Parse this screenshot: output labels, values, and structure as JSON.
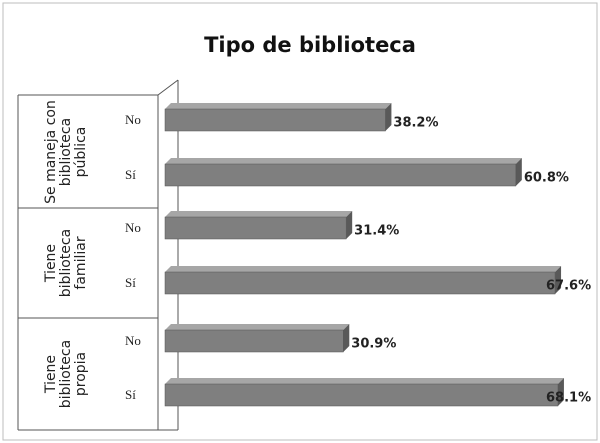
{
  "chart_data": {
    "type": "bar3d",
    "title": "Tipo de biblioteca",
    "groups": [
      "Se maneja con biblioteca pública",
      "Tiene biblioteca familiar",
      "Tiene biblioteca propia"
    ],
    "categories": [
      "No",
      "Sí",
      "No",
      "Sí",
      "No",
      "Sí"
    ],
    "values": [
      38.2,
      60.8,
      31.4,
      67.6,
      30.9,
      68.1
    ],
    "value_labels": [
      "38.2%",
      "60.8%",
      "31.4%",
      "67.6%",
      "30.9%",
      "68.1%"
    ],
    "color": "#7f7f7f"
  }
}
